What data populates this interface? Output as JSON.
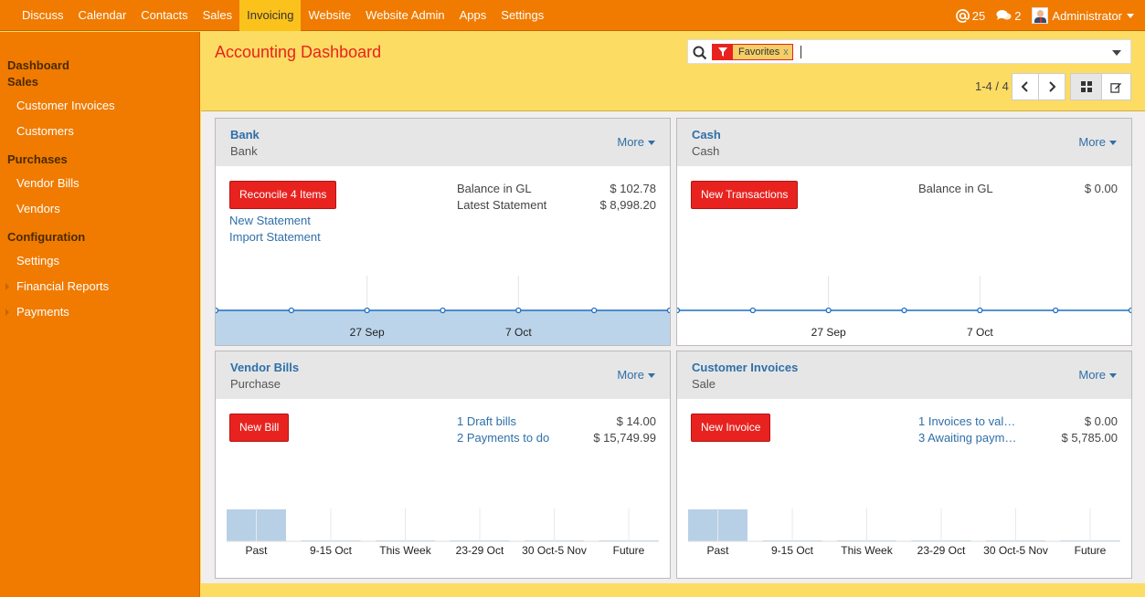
{
  "topmenu": [
    "Discuss",
    "Calendar",
    "Contacts",
    "Sales",
    "Invoicing",
    "Website",
    "Website Admin",
    "Apps",
    "Settings"
  ],
  "topmenu_active": 4,
  "topright": {
    "mentions": "25",
    "messages": "2",
    "user": "Administrator"
  },
  "sidebar": {
    "dashboard": "Dashboard",
    "sales": "Sales",
    "sales_items": [
      "Customer Invoices",
      "Customers"
    ],
    "purchases": "Purchases",
    "purchases_items": [
      "Vendor Bills",
      "Vendors"
    ],
    "configuration": "Configuration",
    "config_items": [
      "Settings"
    ],
    "config_expandable": [
      "Financial Reports",
      "Payments"
    ]
  },
  "page_title": "Accounting Dashboard",
  "search": {
    "facet_label": "Favorites",
    "facet_remove": "x"
  },
  "pager": "1-4 / 4",
  "cards": {
    "bank": {
      "name": "Bank",
      "type": "Bank",
      "more": "More",
      "button": "Reconcile 4 Items",
      "links": [
        "New Statement",
        "Import Statement"
      ],
      "stats": [
        {
          "label": "Balance in GL",
          "value": "$ 102.78"
        },
        {
          "label": "Latest Statement",
          "value": "$ 8,998.20"
        }
      ]
    },
    "cash": {
      "name": "Cash",
      "type": "Cash",
      "more": "More",
      "button": "New Transactions",
      "stats": [
        {
          "label": "Balance in GL",
          "value": "$ 0.00"
        }
      ]
    },
    "vendor": {
      "name": "Vendor Bills",
      "type": "Purchase",
      "more": "More",
      "button": "New Bill",
      "stats": [
        {
          "label": "1 Draft bills",
          "value": "$ 14.00"
        },
        {
          "label": "2 Payments to do",
          "value": "$ 15,749.99"
        }
      ]
    },
    "customer": {
      "name": "Customer Invoices",
      "type": "Sale",
      "more": "More",
      "button": "New Invoice",
      "stats": [
        {
          "label": "1 Invoices to val…",
          "value": "$ 0.00"
        },
        {
          "label": "3 Awaiting paym…",
          "value": "$ 5,785.00"
        }
      ]
    }
  },
  "chart_data": [
    {
      "type": "area",
      "title": "Bank",
      "x_tick_labels": [
        "27 Sep",
        "7 Oct"
      ],
      "points": 7,
      "accent": "#1f6fc1"
    },
    {
      "type": "line",
      "title": "Cash",
      "x_tick_labels": [
        "27 Sep",
        "7 Oct"
      ],
      "points": 7,
      "accent": "#1f6fc1"
    },
    {
      "type": "bar",
      "title": "Vendor Bills",
      "categories": [
        "Past",
        "9-15 Oct",
        "This Week",
        "23-29 Oct",
        "30 Oct-5 Nov",
        "Future"
      ],
      "values": [
        1,
        0,
        0,
        0,
        0,
        0
      ],
      "accent": "#b8d0e6"
    },
    {
      "type": "bar",
      "title": "Customer Invoices",
      "categories": [
        "Past",
        "9-15 Oct",
        "This Week",
        "23-29 Oct",
        "30 Oct-5 Nov",
        "Future"
      ],
      "values": [
        1,
        0,
        0,
        0,
        0,
        0
      ],
      "accent": "#b8d0e6"
    }
  ]
}
